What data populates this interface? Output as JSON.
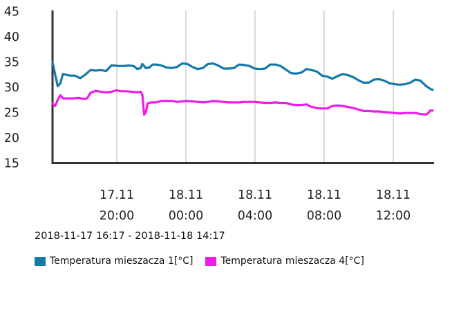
{
  "chart_data": {
    "type": "line",
    "yticks": [
      "45",
      "40",
      "35",
      "30",
      "25",
      "20",
      "15"
    ],
    "ylim": [
      15,
      45
    ],
    "xticks": [
      {
        "hour": 3.72,
        "line1": "17.11",
        "line2": "20:00"
      },
      {
        "hour": 7.72,
        "line1": "18.11",
        "line2": "00:00"
      },
      {
        "hour": 11.72,
        "line1": "18.11",
        "line2": "04:00"
      },
      {
        "hour": 15.72,
        "line1": "18.11",
        "line2": "08:00"
      },
      {
        "hour": 19.72,
        "line1": "18.11",
        "line2": "12:00"
      }
    ],
    "xlim": [
      0,
      22
    ],
    "range_label": "2018-11-17 16:17 - 2018-11-18 14:17",
    "grid": "vertical",
    "legend_position": "bottom-left",
    "series": [
      {
        "name": "Temperatura mieszacza 1[°C]",
        "color": "#1478a8",
        "x": [
          0.0,
          0.15,
          0.3,
          0.45,
          0.6,
          0.75,
          1.0,
          1.3,
          1.6,
          1.9,
          2.2,
          2.5,
          2.8,
          3.1,
          3.4,
          3.6,
          3.8,
          4.1,
          4.4,
          4.7,
          4.9,
          5.1,
          5.2,
          5.4,
          5.6,
          5.8,
          6.0,
          6.3,
          6.6,
          6.9,
          7.2,
          7.5,
          7.8,
          8.1,
          8.4,
          8.7,
          9.0,
          9.3,
          9.6,
          9.9,
          10.2,
          10.5,
          10.8,
          11.1,
          11.4,
          11.7,
          12.0,
          12.3,
          12.6,
          12.9,
          13.2,
          13.5,
          13.8,
          14.1,
          14.4,
          14.7,
          15.0,
          15.3,
          15.6,
          15.9,
          16.2,
          16.5,
          16.8,
          17.1,
          17.4,
          17.7,
          18.0,
          18.3,
          18.6,
          18.9,
          19.2,
          19.5,
          19.8,
          20.1,
          20.4,
          20.7,
          21.0,
          21.3,
          21.6,
          21.9,
          22.0
        ],
        "values": [
          35.0,
          32.5,
          30.2,
          30.8,
          32.6,
          32.5,
          32.3,
          32.3,
          31.8,
          32.5,
          33.4,
          33.3,
          33.4,
          33.2,
          34.3,
          34.3,
          34.2,
          34.2,
          34.3,
          34.2,
          33.6,
          33.8,
          34.6,
          33.8,
          33.9,
          34.5,
          34.5,
          34.3,
          33.9,
          33.8,
          34.0,
          34.7,
          34.6,
          34.0,
          33.6,
          33.8,
          34.6,
          34.7,
          34.3,
          33.7,
          33.7,
          33.8,
          34.5,
          34.4,
          34.2,
          33.7,
          33.6,
          33.7,
          34.5,
          34.5,
          34.2,
          33.5,
          32.8,
          32.7,
          32.9,
          33.6,
          33.4,
          33.1,
          32.3,
          32.1,
          31.7,
          32.2,
          32.6,
          32.4,
          32.0,
          31.4,
          30.9,
          30.9,
          31.5,
          31.6,
          31.3,
          30.8,
          30.6,
          30.5,
          30.6,
          30.9,
          31.5,
          31.3,
          30.3,
          29.6,
          29.5
        ]
      },
      {
        "name": "Temperatura mieszacza 4[°C]",
        "color": "#ee1bea",
        "x": [
          0.0,
          0.15,
          0.3,
          0.45,
          0.6,
          0.9,
          1.2,
          1.5,
          1.8,
          2.0,
          2.2,
          2.5,
          2.8,
          3.1,
          3.4,
          3.7,
          4.0,
          4.3,
          4.6,
          4.9,
          5.1,
          5.2,
          5.3,
          5.4,
          5.5,
          5.7,
          6.0,
          6.3,
          6.6,
          6.9,
          7.2,
          7.5,
          7.8,
          8.1,
          8.4,
          8.7,
          9.0,
          9.3,
          9.6,
          9.9,
          10.2,
          10.5,
          10.8,
          11.1,
          11.4,
          11.7,
          12.0,
          12.3,
          12.6,
          12.9,
          13.2,
          13.5,
          13.8,
          14.1,
          14.4,
          14.7,
          15.0,
          15.3,
          15.6,
          15.9,
          16.2,
          16.5,
          16.8,
          17.1,
          17.4,
          17.7,
          18.0,
          18.3,
          18.6,
          18.9,
          19.2,
          19.5,
          19.8,
          20.1,
          20.4,
          20.7,
          21.0,
          21.3,
          21.6,
          21.75,
          21.85,
          22.0
        ],
        "values": [
          26.8,
          26.3,
          27.5,
          28.4,
          27.8,
          27.8,
          27.8,
          27.9,
          27.7,
          27.8,
          28.9,
          29.3,
          29.1,
          29.0,
          29.1,
          29.4,
          29.2,
          29.2,
          29.1,
          29.0,
          29.1,
          28.5,
          24.6,
          25.0,
          26.8,
          27.0,
          27.0,
          27.3,
          27.3,
          27.3,
          27.1,
          27.2,
          27.3,
          27.2,
          27.1,
          27.0,
          27.1,
          27.3,
          27.2,
          27.1,
          27.0,
          27.0,
          27.0,
          27.1,
          27.1,
          27.1,
          27.0,
          26.9,
          26.9,
          27.0,
          26.9,
          26.9,
          26.6,
          26.5,
          26.5,
          26.6,
          26.1,
          25.9,
          25.8,
          25.8,
          26.3,
          26.4,
          26.3,
          26.1,
          25.9,
          25.6,
          25.3,
          25.3,
          25.2,
          25.2,
          25.1,
          25.0,
          24.9,
          24.8,
          24.9,
          24.9,
          24.9,
          24.7,
          24.6,
          24.9,
          25.4,
          25.4
        ]
      }
    ]
  }
}
